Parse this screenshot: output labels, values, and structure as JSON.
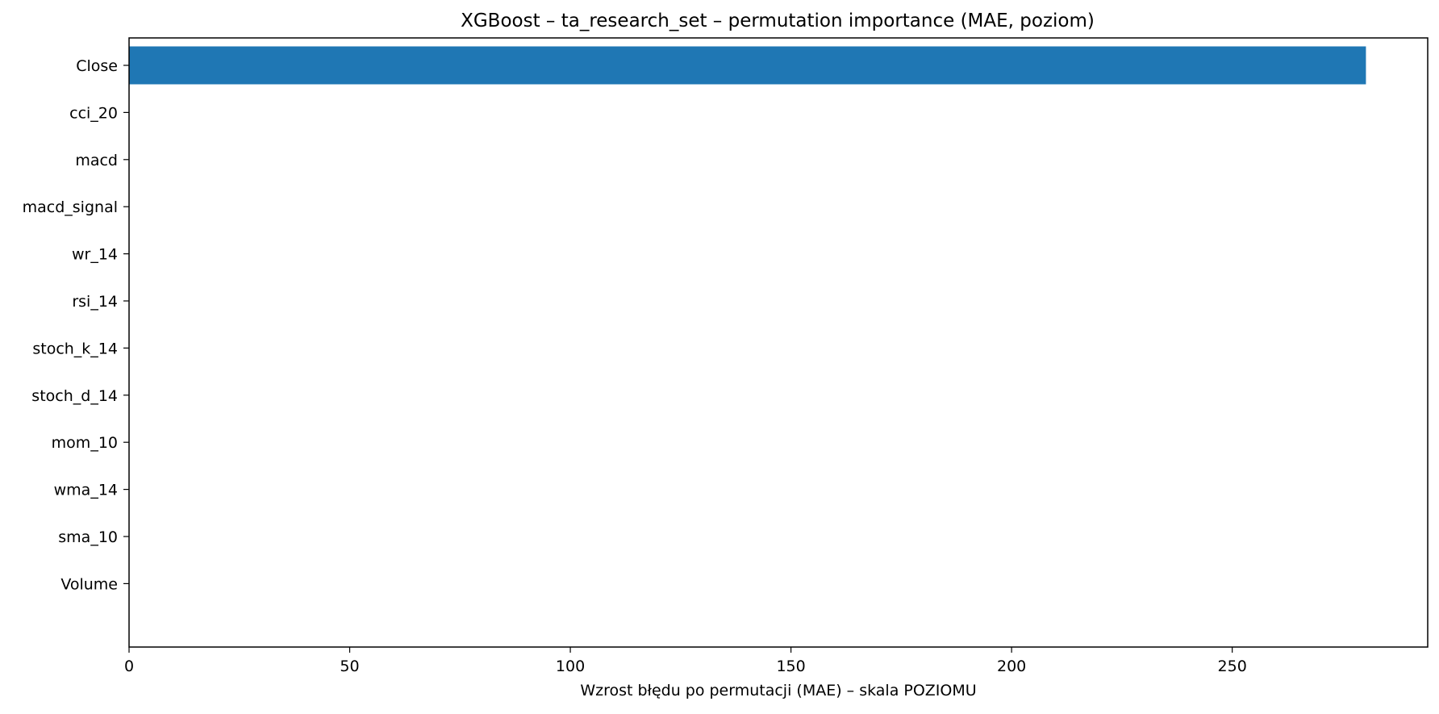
{
  "chart_data": {
    "type": "bar",
    "orientation": "horizontal",
    "title": "XGBoost – ta_research_set – permutation importance (MAE, poziom)",
    "xlabel": "Wzrost błędu po permutacji (MAE) – skala POZIOMU",
    "ylabel": "",
    "categories": [
      "Close",
      "cci_20",
      "macd",
      "macd_signal",
      "wr_14",
      "rsi_14",
      "stoch_k_14",
      "stoch_d_14",
      "mom_10",
      "wma_14",
      "sma_10",
      "Volume"
    ],
    "values": [
      280.3,
      0,
      0,
      0,
      0,
      0,
      0,
      0,
      0,
      0,
      0,
      0
    ],
    "xlim": [
      0,
      294.3
    ],
    "xticks": [
      0,
      50,
      100,
      150,
      200,
      250
    ],
    "grid": false,
    "bar_color": "#1f77b4"
  }
}
